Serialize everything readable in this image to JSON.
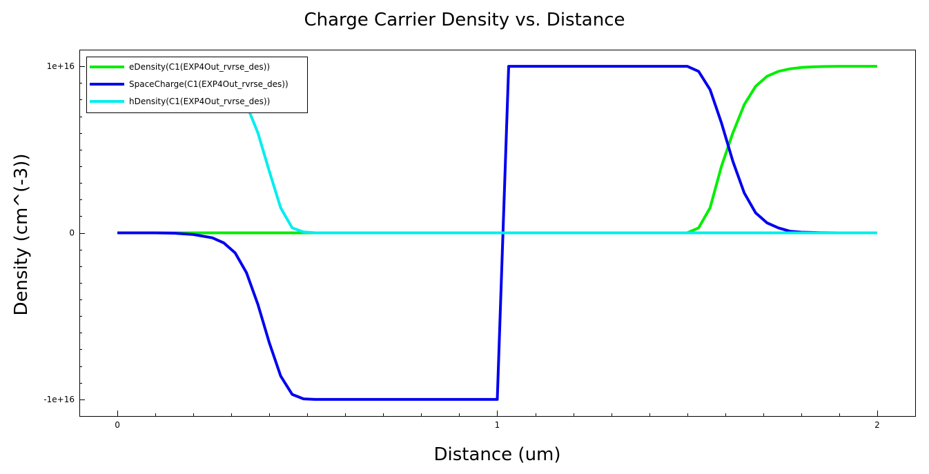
{
  "chart_data": {
    "type": "line",
    "title": "Charge Carrier Density vs. Distance",
    "xlabel": "Distance (um)",
    "ylabel": "Density (cm^(-3))",
    "xlim": [
      -0.1,
      2.1
    ],
    "ylim": [
      -1.1e+16,
      1.1e+16
    ],
    "x_ticks": [
      0,
      1,
      2
    ],
    "x_tick_labels": [
      "0",
      "1",
      "2"
    ],
    "y_ticks": [
      -1e+16,
      0,
      1e+16
    ],
    "y_tick_labels": [
      "-1e+16",
      "0",
      "1e+16"
    ],
    "grid": false,
    "legend_position": "top-left",
    "series": [
      {
        "name": "eDensity(C1(EXP4Out_rvrse_des))",
        "color": "#00ee00",
        "x": [
          0,
          0.1,
          0.2,
          0.3,
          0.4,
          0.5,
          0.6,
          0.7,
          0.8,
          0.9,
          1.0,
          1.1,
          1.2,
          1.3,
          1.4,
          1.5,
          1.53,
          1.56,
          1.59,
          1.62,
          1.65,
          1.68,
          1.71,
          1.74,
          1.77,
          1.8,
          1.83,
          1.86,
          1.9,
          1.95,
          2.0
        ],
        "y": [
          0,
          0,
          0,
          0,
          0,
          0,
          0,
          0,
          0,
          0,
          0,
          0,
          0,
          0,
          0,
          0,
          300000000000000.0,
          1500000000000000.0,
          4000000000000000.0,
          6000000000000000.0,
          7700000000000000.0,
          8800000000000000.0,
          9400000000000000.0,
          9700000000000000.0,
          9850000000000000.0,
          9930000000000000.0,
          9970000000000000.0,
          9990000000000000.0,
          1e+16,
          1e+16,
          1e+16
        ]
      },
      {
        "name": "SpaceCharge(C1(EXP4Out_rvrse_des))",
        "color": "#0000ee",
        "x": [
          0,
          0.1,
          0.15,
          0.2,
          0.25,
          0.28,
          0.31,
          0.34,
          0.37,
          0.4,
          0.43,
          0.46,
          0.49,
          0.52,
          0.55,
          0.6,
          0.7,
          0.8,
          0.9,
          1.0,
          1.03,
          1.1,
          1.2,
          1.3,
          1.4,
          1.5,
          1.53,
          1.56,
          1.59,
          1.62,
          1.65,
          1.68,
          1.71,
          1.74,
          1.77,
          1.8,
          1.85,
          1.9,
          2.0
        ],
        "y": [
          0,
          0,
          -20000000000000.0,
          -100000000000000.0,
          -300000000000000.0,
          -600000000000000.0,
          -1200000000000000.0,
          -2400000000000000.0,
          -4300000000000000.0,
          -6600000000000000.0,
          -8600000000000000.0,
          -9700000000000000.0,
          -9970000000000000.0,
          -1e+16,
          -1e+16,
          -1e+16,
          -1e+16,
          -1e+16,
          -1e+16,
          -1e+16,
          1e+16,
          1e+16,
          1e+16,
          1e+16,
          1e+16,
          1e+16,
          9700000000000000.0,
          8600000000000000.0,
          6600000000000000.0,
          4300000000000000.0,
          2400000000000000.0,
          1200000000000000.0,
          600000000000000.0,
          300000000000000.0,
          100000000000000.0,
          40000000000000.0,
          10000000000000.0,
          0,
          0
        ]
      },
      {
        "name": "hDensity(C1(EXP4Out_rvrse_des))",
        "color": "#00eeee",
        "x": [
          0.0,
          0.1,
          0.2,
          0.25,
          0.28,
          0.31,
          0.34,
          0.37,
          0.4,
          0.43,
          0.46,
          0.49,
          0.52,
          0.55,
          0.6,
          0.7,
          0.8,
          0.9,
          1.0,
          1.2,
          1.4,
          1.6,
          1.8,
          2.0
        ],
        "y": [
          1e+16,
          1e+16,
          9900000000000000.0,
          9700000000000000.0,
          9400000000000000.0,
          8800000000000000.0,
          7700000000000000.0,
          6000000000000000.0,
          3700000000000000.0,
          1500000000000000.0,
          300000000000000.0,
          50000000000000.0,
          0,
          0,
          0,
          0,
          0,
          0,
          0,
          0,
          0,
          0,
          0,
          0
        ]
      }
    ]
  }
}
